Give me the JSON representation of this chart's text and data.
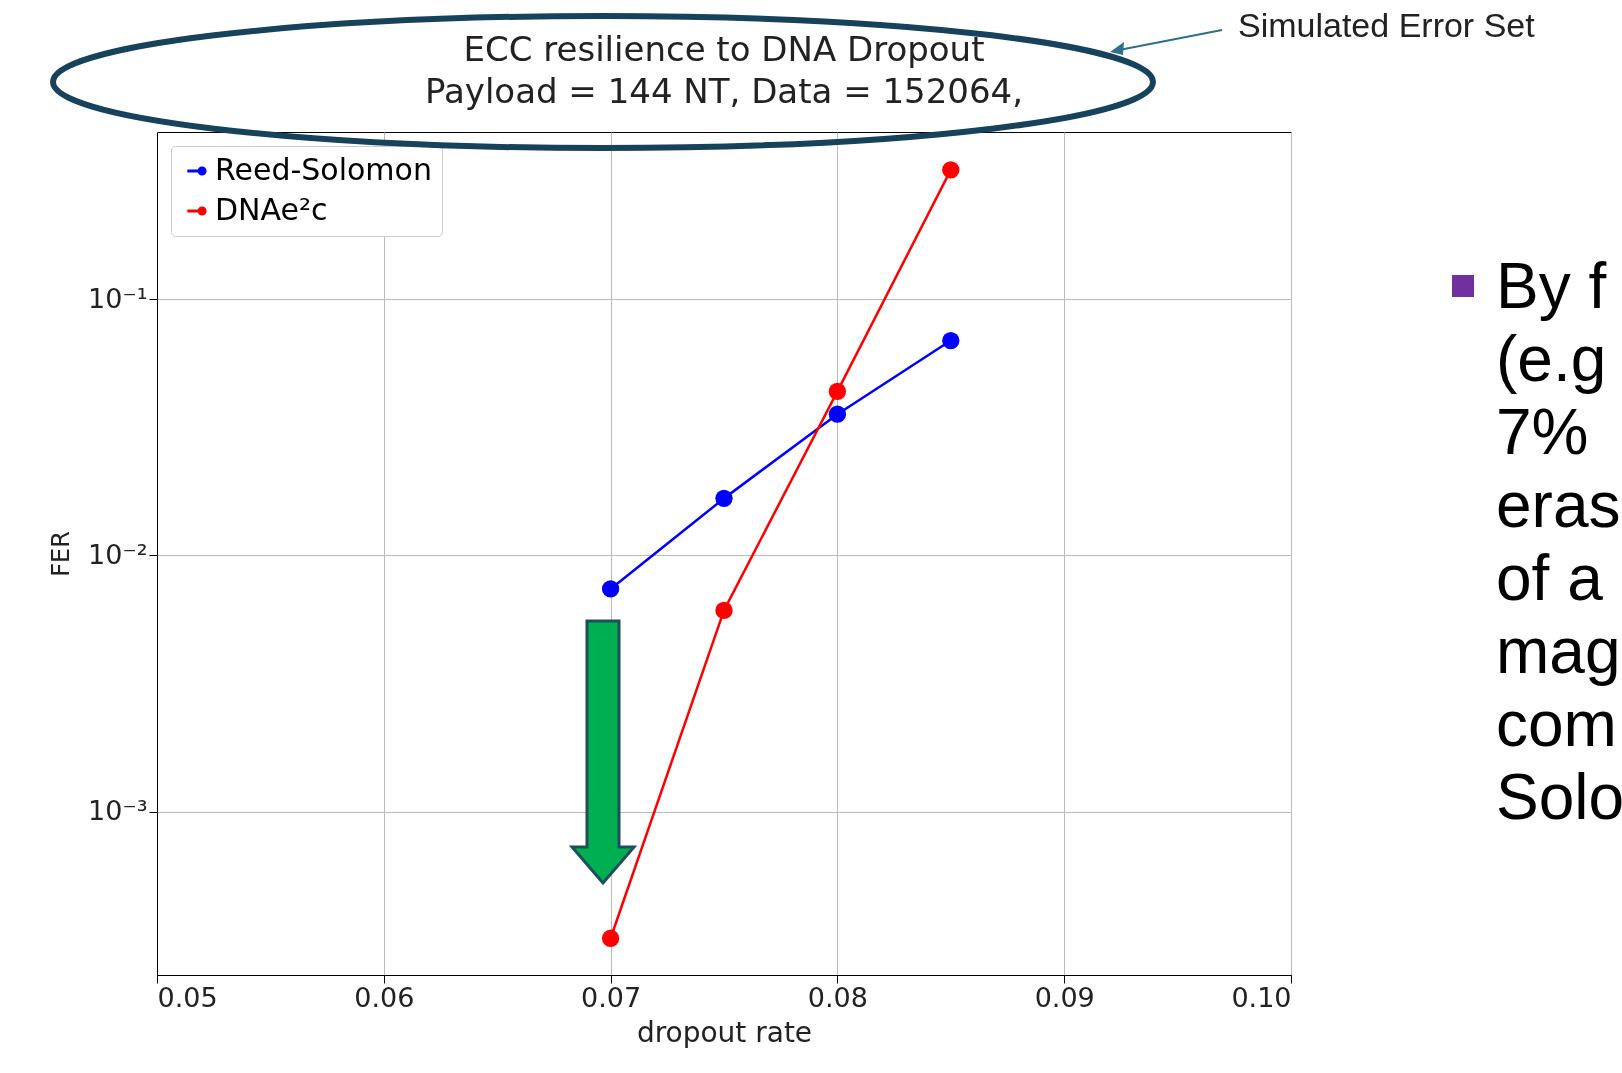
{
  "chart_data": {
    "type": "line",
    "title": "ECC resilience to DNA Dropout",
    "subtitle": "Payload = 144 NT, Data = 152064,",
    "xlabel": "dropout rate",
    "ylabel": "FER",
    "x": [
      0.07,
      0.075,
      0.08,
      0.085
    ],
    "series": [
      {
        "name": "Reed-Solomon",
        "color": "#0000ff",
        "values": [
          0.0074,
          0.0167,
          0.0356,
          0.069
        ]
      },
      {
        "name": "DNAe²c",
        "color": "#ff0000",
        "values": [
          0.00032,
          0.0061,
          0.0437,
          0.32
        ]
      }
    ],
    "xlim": [
      0.05,
      0.1
    ],
    "xticks": [
      0.05,
      0.06,
      0.07,
      0.08,
      0.09,
      {
        "value": 0.1,
        "label": "0.10"
      }
    ],
    "ylim": [
      0.00023,
      0.45
    ],
    "yticks": [
      {
        "value": 0.001,
        "label": "10⁻³"
      },
      {
        "value": 0.01,
        "label": "10⁻²"
      },
      {
        "value": 0.1,
        "label": "10⁻¹"
      }
    ],
    "log": "y",
    "grid": true,
    "legend": "top left",
    "marker": "circle",
    "line_style": "solid",
    "annotations": [
      "Simulated Error Set",
      "By f",
      "(e.g",
      "7%",
      "eras",
      "of a",
      "mag",
      "com",
      "Solo"
    ]
  }
}
